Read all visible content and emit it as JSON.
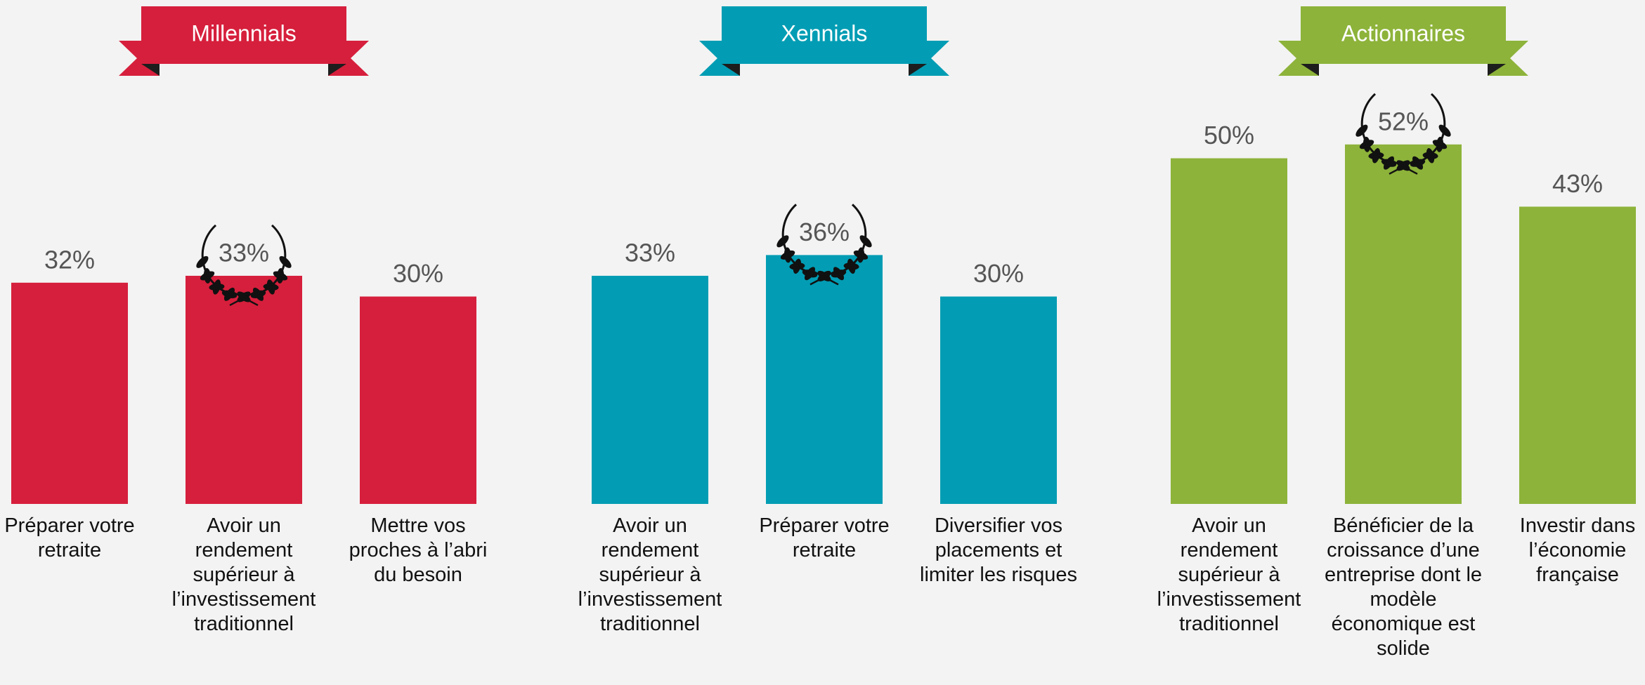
{
  "chart_data": [
    {
      "type": "bar",
      "title": "Millennials",
      "color": "#d61f3c",
      "categories": [
        "Préparer votre retraite",
        "Avoir un rendement supérieur à l’investissement traditionnel",
        "Mettre vos proches à l’abri du besoin"
      ],
      "values": [
        32,
        33,
        30
      ],
      "value_labels": [
        "32%",
        "33%",
        "30%"
      ]
    },
    {
      "type": "bar",
      "title": "Xennials",
      "color": "#029db4",
      "categories": [
        "Avoir un rendement supérieur à l’investissement traditionnel",
        "Préparer votre retraite",
        "Diversifier vos placements et limiter les risques"
      ],
      "values": [
        33,
        36,
        30
      ],
      "value_labels": [
        "33%",
        "36%",
        "30%"
      ]
    },
    {
      "type": "bar",
      "title": "Actionnaires",
      "color": "#8db33a",
      "categories": [
        "Avoir un rendement supérieur à l’investissement traditionnel",
        "Bénéficier de la croissance d’une entreprise dont le modèle économique est solide",
        "Investir dans l’économie française"
      ],
      "values": [
        50,
        52,
        43
      ],
      "value_labels": [
        "50%",
        "52%",
        "43%"
      ]
    }
  ]
}
